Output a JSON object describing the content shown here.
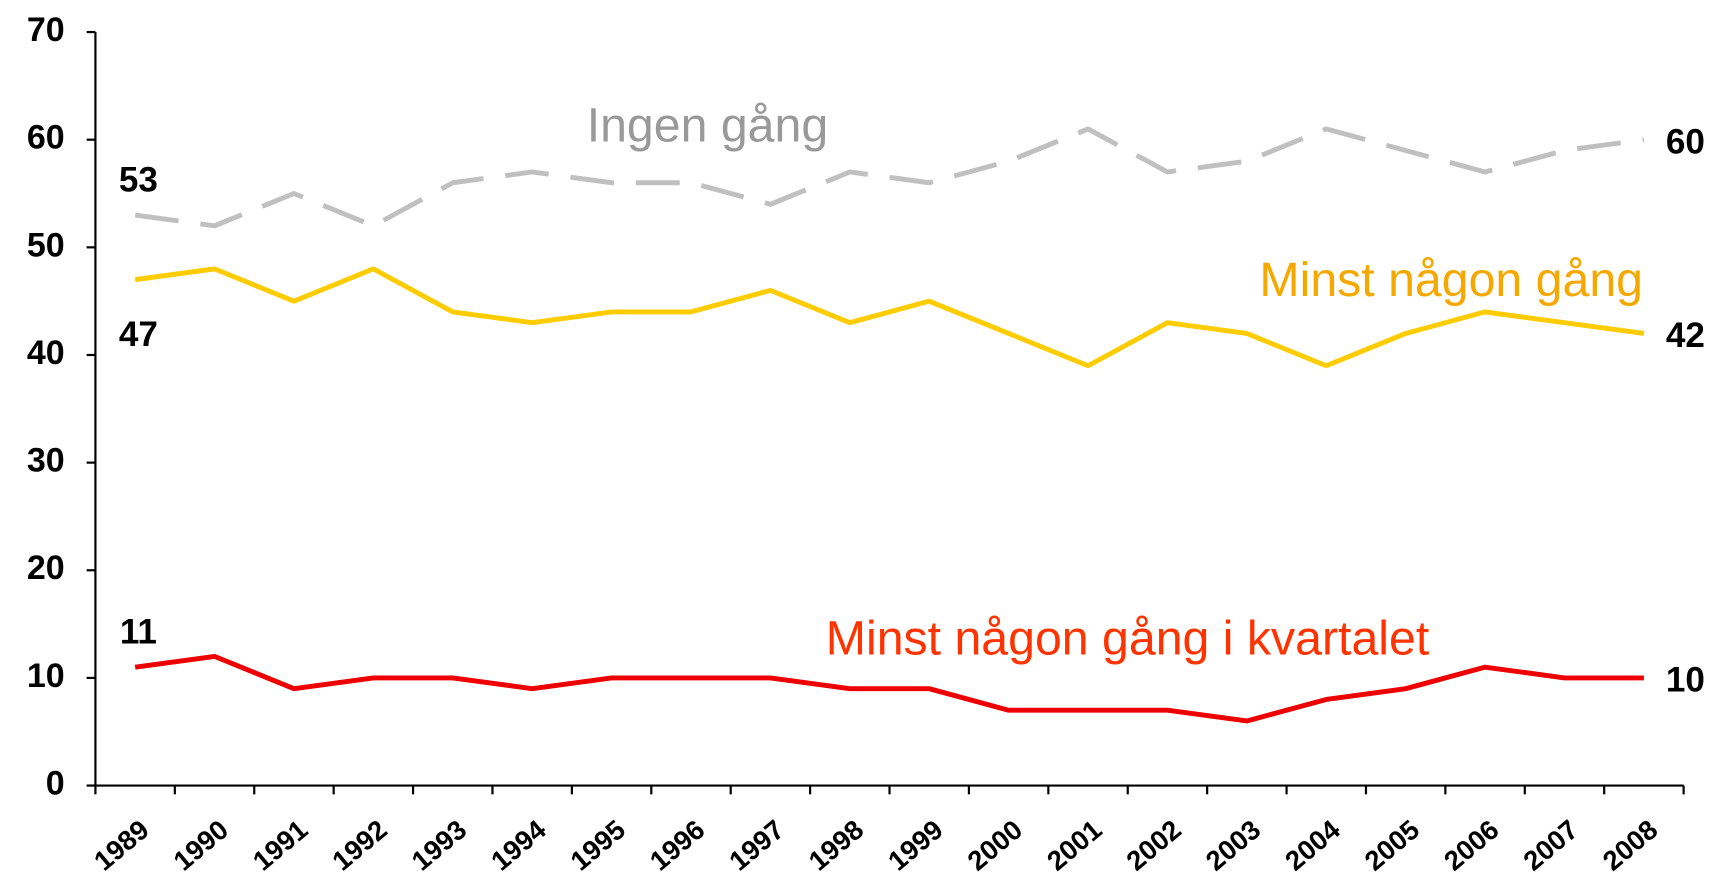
{
  "chart_data": {
    "type": "line",
    "categories": [
      "1989",
      "1990",
      "1991",
      "1992",
      "1993",
      "1994",
      "1995",
      "1996",
      "1997",
      "1998",
      "1999",
      "2000",
      "2001",
      "2002",
      "2003",
      "2004",
      "2005",
      "2006",
      "2007",
      "2008"
    ],
    "series": [
      {
        "name": "Ingen gång",
        "color": "#c0c0c0",
        "label_color": "#999999",
        "dashed": true,
        "values": [
          53,
          52,
          55,
          52,
          56,
          57,
          56,
          56,
          54,
          57,
          56,
          58,
          61,
          57,
          58,
          61,
          59,
          57,
          59,
          60
        ]
      },
      {
        "name": "Minst någon gång",
        "color": "#ffcc00",
        "label_color": "#f5a800",
        "dashed": false,
        "values": [
          47,
          48,
          45,
          48,
          44,
          43,
          44,
          44,
          46,
          43,
          45,
          42,
          39,
          43,
          42,
          39,
          42,
          44,
          43,
          42
        ]
      },
      {
        "name": "Minst någon gång i kvartalet",
        "color": "#ee0000",
        "label_color": "#ff3300",
        "dashed": false,
        "values": [
          11,
          12,
          9,
          10,
          10,
          9,
          10,
          10,
          10,
          9,
          9,
          7,
          7,
          7,
          6,
          8,
          9,
          11,
          10,
          10
        ]
      }
    ],
    "ylim": [
      0,
      70
    ],
    "yticks": [
      0,
      10,
      20,
      30,
      40,
      50,
      60,
      70
    ],
    "grid": false
  }
}
